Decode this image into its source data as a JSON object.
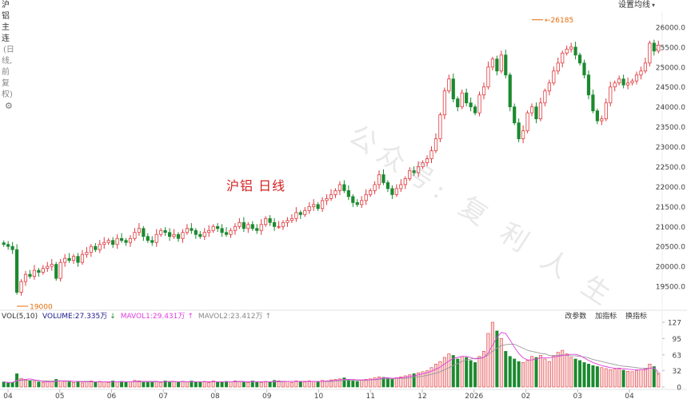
{
  "header": {
    "title": "沪铝主连",
    "subtitle": "(日线,前复权)",
    "settings_label": "设置均线"
  },
  "overlay_label": "沪铝   日线",
  "watermark": "公众号: 复 利 人 生",
  "volume_legend": {
    "title": "VOL(5,10)",
    "volume": "VOLUME:27.335万",
    "mavol1": "MAVOL1:29.431万",
    "mavol2": "MAVOL2:23.412万"
  },
  "volume_tools": [
    "改参数",
    "加指标",
    "换指标"
  ],
  "colors": {
    "up": "#e0393e",
    "up_fill": "#ffffff",
    "down": "#1b8a2f",
    "mavol1": "#e040e0",
    "mavol2": "#999999",
    "annotation": "#e36c0a",
    "text": "#333333"
  },
  "chart_data": [
    {
      "type": "candlestick",
      "title": "沪铝主连",
      "x_ticks": [
        "04",
        "05",
        "06",
        "07",
        "08",
        "09",
        "10",
        "11",
        "12",
        "2026",
        "02",
        "03",
        "04"
      ],
      "y_ticks": [
        19500,
        20000,
        20500,
        21000,
        21500,
        22000,
        22500,
        23000,
        23500,
        24000,
        24500,
        25000,
        25500,
        26000
      ],
      "y_tick_labels": [
        "19500.0",
        "20000.0",
        "20500.0",
        "21000.0",
        "21500.0",
        "22000.0",
        "22500.0",
        "23000.0",
        "23500.0",
        "24000.0",
        "24500.0",
        "25000.0",
        "25500.0",
        "26000.0"
      ],
      "ylim": [
        19000,
        26400
      ],
      "annotations": [
        {
          "label": "19000",
          "value": 19000,
          "tick_index": 0
        },
        {
          "label": "26185",
          "value": 26185,
          "tick_index": 9
        }
      ],
      "closes": [
        20550,
        20500,
        20420,
        19350,
        19620,
        19800,
        19750,
        19900,
        19850,
        19950,
        20000,
        20050,
        19700,
        20100,
        20200,
        20150,
        20250,
        20100,
        20300,
        20350,
        20500,
        20420,
        20550,
        20600,
        20650,
        20550,
        20700,
        20650,
        20600,
        20700,
        20850,
        20950,
        20750,
        20650,
        20600,
        20800,
        20900,
        20850,
        20750,
        20800,
        20700,
        20850,
        20950,
        20900,
        20800,
        20750,
        20850,
        20900,
        21000,
        20950,
        20850,
        20800,
        20900,
        21000,
        21100,
        20950,
        21050,
        20950,
        20900,
        21050,
        21200,
        21100,
        21000,
        21000,
        21100,
        21150,
        21200,
        21350,
        21300,
        21400,
        21500,
        21550,
        21450,
        21650,
        21700,
        21800,
        21900,
        22050,
        21900,
        21750,
        21600,
        21550,
        21650,
        21800,
        21900,
        22050,
        22300,
        22100,
        21950,
        21800,
        21950,
        22050,
        22200,
        22400,
        22350,
        22500,
        22600,
        22700,
        22900,
        23200,
        23800,
        24400,
        24700,
        24200,
        24000,
        24350,
        24100,
        24000,
        23850,
        24300,
        24500,
        25000,
        25200,
        24900,
        25300,
        24800,
        24000,
        23600,
        23200,
        23400,
        23850,
        24000,
        23700,
        24100,
        24400,
        24600,
        24900,
        25100,
        25350,
        25450,
        25500,
        25300,
        25100,
        24800,
        24300,
        23900,
        23650,
        23700,
        24100,
        24500,
        24600,
        24700,
        24550,
        24600,
        24650,
        24800,
        24900,
        25100,
        25600,
        25400,
        25550
      ],
      "volume": {
        "name": "VOLUME",
        "y_ticks": [
          0,
          32,
          63,
          95,
          127
        ],
        "ylim": [
          0,
          127
        ],
        "values": [
          10,
          8,
          9,
          26,
          17,
          14,
          12,
          11,
          10,
          9,
          12,
          10,
          15,
          12,
          11,
          10,
          9,
          11,
          8,
          10,
          12,
          9,
          11,
          10,
          9,
          12,
          10,
          11,
          9,
          10,
          13,
          12,
          10,
          9,
          11,
          10,
          9,
          12,
          11,
          10,
          9,
          11,
          10,
          12,
          9,
          10,
          11,
          9,
          12,
          10,
          9,
          11,
          10,
          12,
          11,
          10,
          9,
          12,
          10,
          9,
          11,
          10,
          13,
          12,
          10,
          11,
          9,
          12,
          11,
          10,
          12,
          11,
          10,
          13,
          12,
          14,
          15,
          16,
          18,
          14,
          12,
          11,
          13,
          15,
          16,
          18,
          20,
          19,
          17,
          15,
          18,
          20,
          22,
          24,
          26,
          28,
          30,
          32,
          38,
          45,
          50,
          58,
          65,
          62,
          55,
          60,
          58,
          52,
          48,
          60,
          70,
          105,
          127,
          110,
          95,
          70,
          60,
          55,
          50,
          48,
          52,
          60,
          58,
          62,
          55,
          50,
          62,
          68,
          72,
          65,
          58,
          55,
          52,
          48,
          45,
          42,
          40,
          38,
          36,
          34,
          35,
          37,
          33,
          31,
          30,
          32,
          34,
          36,
          45,
          40,
          27.3
        ],
        "mavol1": [
          10,
          9,
          9,
          13,
          14,
          15,
          16,
          14,
          13,
          11,
          10,
          10,
          11,
          12,
          12,
          12,
          11,
          11,
          10,
          10,
          10,
          10,
          10,
          10,
          10,
          10,
          10,
          11,
          10,
          10,
          11,
          11,
          11,
          11,
          11,
          11,
          10,
          10,
          11,
          11,
          10,
          11,
          10,
          11,
          10,
          10,
          10,
          10,
          10,
          10,
          10,
          10,
          10,
          11,
          11,
          11,
          10,
          11,
          10,
          10,
          10,
          10,
          11,
          11,
          11,
          11,
          11,
          11,
          11,
          11,
          11,
          11,
          11,
          11,
          12,
          12,
          13,
          14,
          15,
          15,
          15,
          14,
          14,
          14,
          14,
          15,
          16,
          18,
          18,
          17,
          18,
          18,
          19,
          21,
          22,
          24,
          26,
          28,
          31,
          35,
          39,
          45,
          51,
          56,
          58,
          60,
          60,
          58,
          55,
          56,
          58,
          67,
          82,
          97,
          107,
          105,
          92,
          78,
          66,
          57,
          53,
          53,
          55,
          57,
          57,
          57,
          59,
          60,
          62,
          63,
          64,
          64,
          62,
          57,
          52,
          48,
          45,
          42,
          40,
          38,
          37,
          36,
          36,
          35,
          34,
          34,
          34,
          34,
          37,
          38,
          29.4
        ],
        "mavol2": [
          10,
          9,
          9,
          12,
          13,
          13,
          13,
          13,
          12,
          12,
          12,
          12,
          12,
          12,
          12,
          11,
          11,
          11,
          11,
          11,
          11,
          10,
          10,
          10,
          10,
          10,
          10,
          10,
          10,
          10,
          10,
          10,
          10,
          10,
          10,
          10,
          10,
          10,
          10,
          10,
          10,
          10,
          10,
          10,
          10,
          10,
          10,
          10,
          10,
          10,
          10,
          10,
          10,
          10,
          10,
          10,
          10,
          10,
          10,
          10,
          10,
          10,
          10,
          10,
          10,
          11,
          11,
          11,
          11,
          11,
          11,
          11,
          11,
          11,
          11,
          11,
          12,
          12,
          13,
          13,
          13,
          13,
          13,
          13,
          14,
          14,
          15,
          16,
          16,
          16,
          17,
          17,
          17,
          18,
          19,
          20,
          21,
          23,
          25,
          27,
          30,
          34,
          38,
          42,
          46,
          50,
          53,
          55,
          56,
          57,
          58,
          63,
          70,
          76,
          81,
          83,
          84,
          84,
          80,
          76,
          72,
          70,
          68,
          66,
          65,
          62,
          61,
          62,
          63,
          62,
          61,
          61,
          60,
          59,
          57,
          54,
          52,
          50,
          48,
          46,
          44,
          42,
          41,
          40,
          39,
          38,
          37,
          37,
          37,
          37,
          23.4
        ]
      }
    }
  ]
}
